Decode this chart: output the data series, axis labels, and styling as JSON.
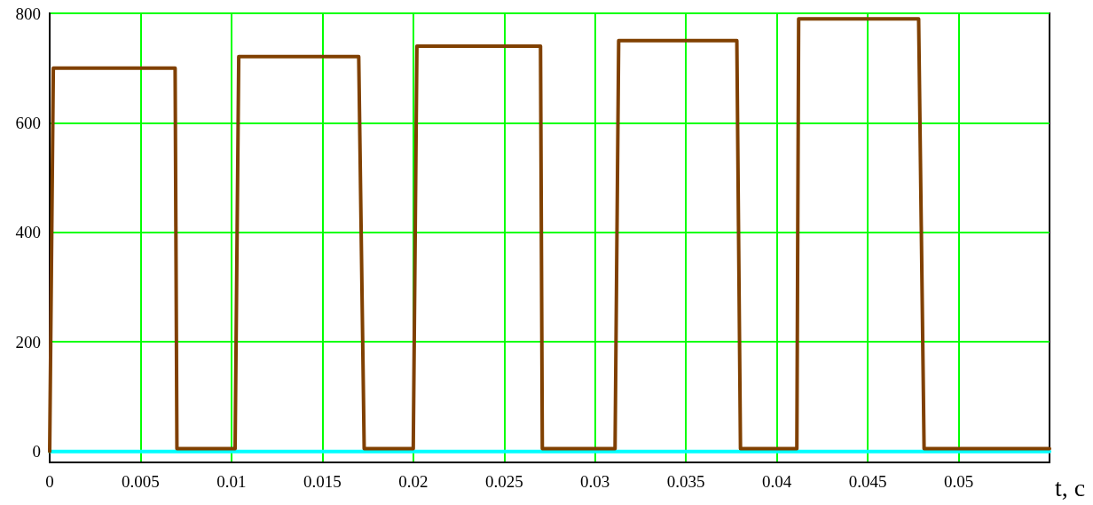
{
  "chart_data": {
    "type": "line",
    "xlabel": "t, c",
    "series": [
      {
        "color": "#00ffff",
        "x": [
          0,
          0.055
        ],
        "values": [
          0,
          0
        ]
      },
      {
        "color": "#804000",
        "x": [
          0,
          0.0002,
          0.0069,
          0.007,
          0.0102,
          0.0104,
          0.017,
          0.0173,
          0.02,
          0.0202,
          0.027,
          0.0271,
          0.0311,
          0.0313,
          0.0378,
          0.038,
          0.0411,
          0.0412,
          0.0478,
          0.0481,
          0.055
        ],
        "values": [
          0,
          700,
          700,
          5,
          5,
          721,
          721,
          5,
          5,
          740,
          740,
          5,
          5,
          750,
          750,
          5,
          5,
          790,
          790,
          5,
          5
        ]
      }
    ],
    "xlim": [
      0,
      0.055
    ],
    "xticks": [
      0,
      0.005,
      0.01,
      0.015,
      0.02,
      0.025,
      0.03,
      0.035,
      0.04,
      0.045,
      0.05
    ],
    "ylim": [
      -20,
      800
    ],
    "yticks": [
      0,
      200,
      400,
      600,
      800
    ],
    "grid": true,
    "marker": "none",
    "line_style": "solid"
  }
}
